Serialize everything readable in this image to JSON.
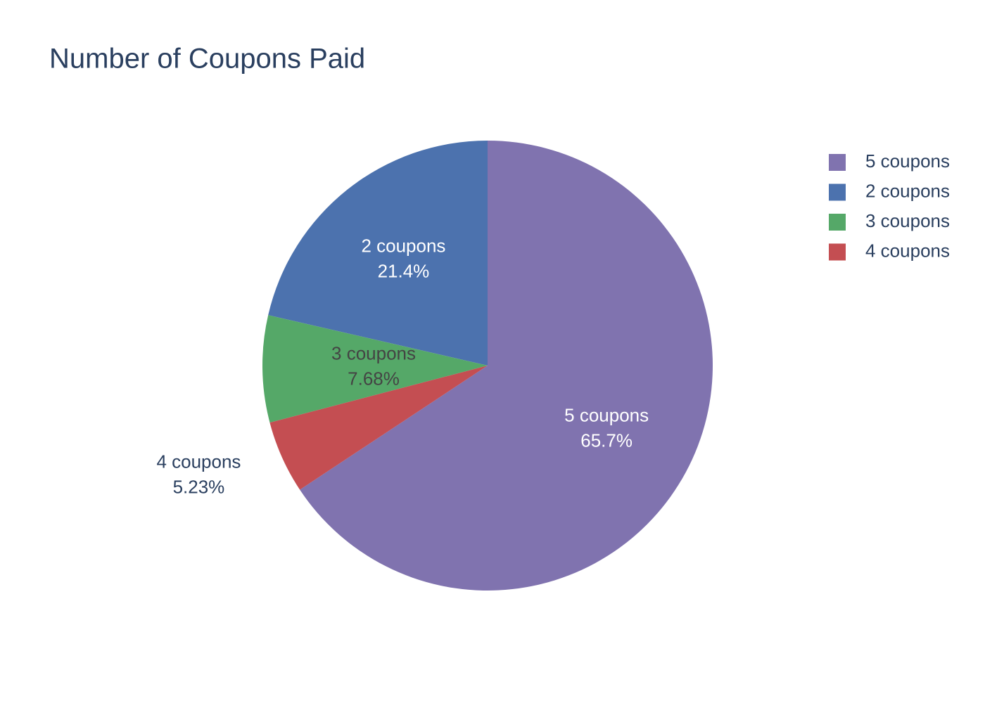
{
  "chart_data": {
    "type": "pie",
    "title": "Number of Coupons Paid",
    "categories": [
      "5 coupons",
      "2 coupons",
      "3 coupons",
      "4 coupons"
    ],
    "values": [
      65.7,
      21.4,
      7.68,
      5.23
    ],
    "value_labels": [
      "65.7%",
      "21.4%",
      "7.68%",
      "5.23%"
    ],
    "colors": [
      "#8073af",
      "#4c72ae",
      "#55a868",
      "#c44e52"
    ],
    "legend": "top-right"
  }
}
